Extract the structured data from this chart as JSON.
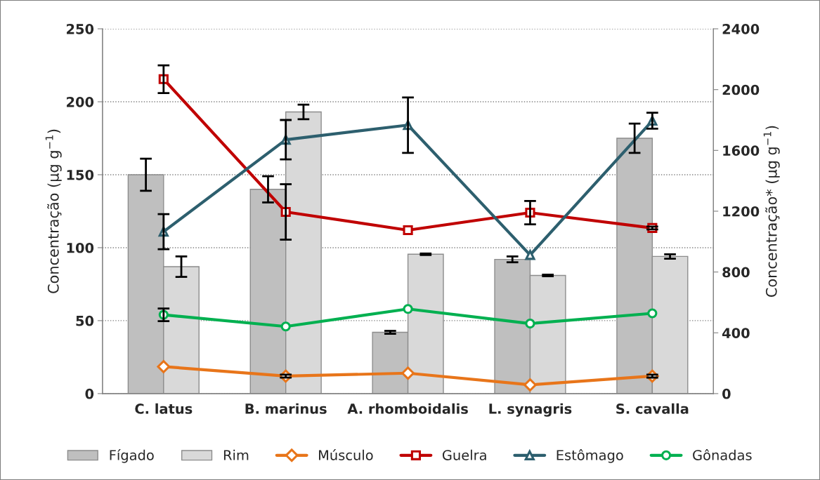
{
  "chart_data": {
    "type": "bar",
    "ylabel": "Concentração (µg g$^{−1}$)",
    "y2label": "Concentração* (µg g$^{−1}$)",
    "categories": [
      "C. latus",
      "B. marinus",
      "A. rhomboidalis",
      "L. synagris",
      "S. cavalla"
    ],
    "series": [
      {
        "name": "Fígado",
        "color": "#bfbfbf",
        "values": [
          150,
          140,
          42,
          92,
          175
        ],
        "errors": [
          11,
          9,
          1,
          2,
          10
        ]
      },
      {
        "name": "Rim",
        "color": "#d9d9d9",
        "values": [
          87,
          193,
          95.5,
          81,
          94
        ],
        "errors": [
          7,
          5,
          0.5,
          0.5,
          1.5
        ]
      },
      {
        "name": "Músculo",
        "type": "line",
        "color": "#e8751a",
        "marker": "diamond",
        "values": [
          18.5,
          12,
          14,
          6,
          12
        ],
        "errors": [
          null,
          1,
          null,
          null,
          1
        ]
      },
      {
        "name": "Guelra",
        "type": "line",
        "color": "#c00000",
        "marker": "square",
        "values": [
          215.5,
          124.5,
          112,
          124,
          113.5
        ],
        "errors": [
          9.5,
          19,
          null,
          8,
          1
        ]
      },
      {
        "name": "Estômago",
        "type": "line",
        "color": "#2d5f6e",
        "marker": "triangle",
        "values": [
          111,
          174,
          184,
          95,
          187
        ],
        "errors": [
          12,
          13.5,
          19,
          null,
          5.5
        ]
      },
      {
        "name": "Gônadas",
        "type": "line",
        "color": "#00b050",
        "marker": "circle",
        "values": [
          54,
          46,
          58,
          48,
          55
        ],
        "errors": [
          4.3,
          null,
          null,
          null,
          null
        ]
      }
    ],
    "ylim": [
      0,
      250
    ],
    "yticks": [
      0,
      50,
      100,
      150,
      200,
      250
    ],
    "y2lim": [
      0,
      2400
    ],
    "y2ticks": [
      0,
      400,
      800,
      1200,
      1600,
      2000,
      2400
    ],
    "grid": "y",
    "legend": "bottom"
  }
}
